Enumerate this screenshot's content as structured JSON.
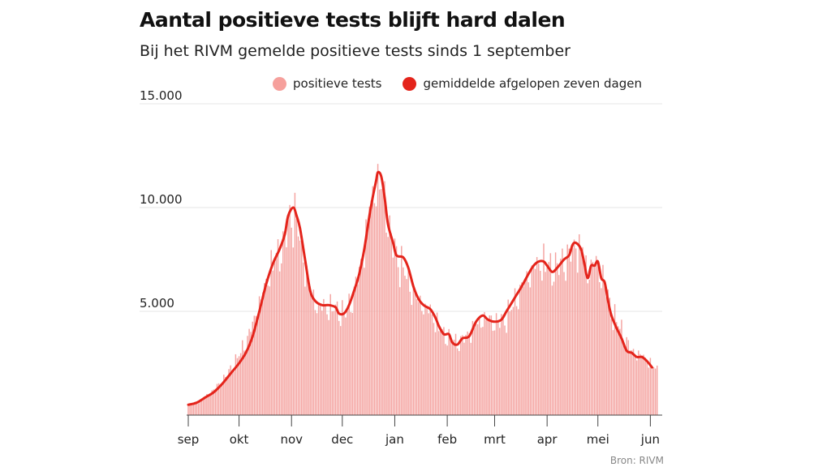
{
  "title": "Aantal positieve tests blijft hard dalen",
  "subtitle": "Bij het RIVM gemelde positieve tests sinds 1 september",
  "source": "Bron: RIVM",
  "colors": {
    "bars": "#f4a3a0",
    "line": "#e4241b",
    "legend_bars": "#f6a09c",
    "legend_line": "#e4241b",
    "grid": "#e6e6e6"
  },
  "chart_data": {
    "type": "bar",
    "ylim": [
      0,
      15000
    ],
    "yticks": [
      5000,
      10000,
      15000
    ],
    "ytick_labels": [
      "5.000",
      "10.000",
      "15.000"
    ],
    "xticks": [
      {
        "label": "sep",
        "day": 0
      },
      {
        "label": "okt",
        "day": 30
      },
      {
        "label": "nov",
        "day": 61
      },
      {
        "label": "dec",
        "day": 91
      },
      {
        "label": "jan",
        "day": 122
      },
      {
        "label": "feb",
        "day": 153
      },
      {
        "label": "mrt",
        "day": 181
      },
      {
        "label": "apr",
        "day": 212
      },
      {
        "label": "mei",
        "day": 242
      },
      {
        "label": "jun",
        "day": 273
      }
    ],
    "series": [
      {
        "name": "positieve tests",
        "type": "bar",
        "x_start": "2020-09-01",
        "x_end": "2021-06-07",
        "anchors": [
          [
            0,
            500
          ],
          [
            7,
            700
          ],
          [
            14,
            1150
          ],
          [
            21,
            1750
          ],
          [
            28,
            2600
          ],
          [
            35,
            3700
          ],
          [
            42,
            5400
          ],
          [
            49,
            7200
          ],
          [
            56,
            8200
          ],
          [
            60,
            9500
          ],
          [
            63,
            9700
          ],
          [
            67,
            8100
          ],
          [
            71,
            6300
          ],
          [
            76,
            5300
          ],
          [
            81,
            5200
          ],
          [
            86,
            5200
          ],
          [
            89,
            5000
          ],
          [
            93,
            4900
          ],
          [
            97,
            5600
          ],
          [
            103,
            7700
          ],
          [
            107,
            9900
          ],
          [
            110,
            11000
          ],
          [
            113,
            11300
          ],
          [
            116,
            10500
          ],
          [
            119,
            8900
          ],
          [
            123,
            7700
          ],
          [
            127,
            7100
          ],
          [
            131,
            6300
          ],
          [
            135,
            5600
          ],
          [
            139,
            5300
          ],
          [
            143,
            5000
          ],
          [
            147,
            4400
          ],
          [
            151,
            3900
          ],
          [
            155,
            3700
          ],
          [
            159,
            3500
          ],
          [
            163,
            3700
          ],
          [
            169,
            4300
          ],
          [
            175,
            4700
          ],
          [
            181,
            4500
          ],
          [
            187,
            4600
          ],
          [
            193,
            5500
          ],
          [
            199,
            6500
          ],
          [
            205,
            7200
          ],
          [
            210,
            7400
          ],
          [
            215,
            7100
          ],
          [
            220,
            7300
          ],
          [
            225,
            7700
          ],
          [
            229,
            8200
          ],
          [
            233,
            7900
          ],
          [
            236,
            6900
          ],
          [
            239,
            7400
          ],
          [
            242,
            7200
          ],
          [
            246,
            6400
          ],
          [
            250,
            5000
          ],
          [
            256,
            4100
          ],
          [
            262,
            3100
          ],
          [
            268,
            2900
          ],
          [
            273,
            2500
          ],
          [
            276,
            2200
          ]
        ],
        "values_note": ""
      },
      {
        "name": "gemiddelde afgelopen zeven dagen",
        "type": "line",
        "points": [
          [
            0,
            500
          ],
          [
            5,
            600
          ],
          [
            10,
            850
          ],
          [
            15,
            1100
          ],
          [
            20,
            1500
          ],
          [
            25,
            2000
          ],
          [
            30,
            2500
          ],
          [
            34,
            3000
          ],
          [
            38,
            3800
          ],
          [
            42,
            5000
          ],
          [
            46,
            6300
          ],
          [
            50,
            7300
          ],
          [
            54,
            8000
          ],
          [
            57,
            8700
          ],
          [
            59,
            9600
          ],
          [
            62,
            10000
          ],
          [
            64,
            9600
          ],
          [
            66,
            9000
          ],
          [
            69,
            7500
          ],
          [
            72,
            6000
          ],
          [
            75,
            5500
          ],
          [
            79,
            5300
          ],
          [
            83,
            5300
          ],
          [
            87,
            5200
          ],
          [
            89,
            4900
          ],
          [
            92,
            4900
          ],
          [
            95,
            5300
          ],
          [
            98,
            6000
          ],
          [
            101,
            6800
          ],
          [
            104,
            8000
          ],
          [
            107,
            9600
          ],
          [
            109,
            10500
          ],
          [
            111,
            11300
          ],
          [
            112,
            11700
          ],
          [
            114,
            11500
          ],
          [
            116,
            10500
          ],
          [
            118,
            9200
          ],
          [
            121,
            8300
          ],
          [
            123,
            7700
          ],
          [
            127,
            7600
          ],
          [
            130,
            7100
          ],
          [
            133,
            6200
          ],
          [
            136,
            5600
          ],
          [
            139,
            5300
          ],
          [
            143,
            5100
          ],
          [
            146,
            4700
          ],
          [
            148,
            4300
          ],
          [
            151,
            3900
          ],
          [
            154,
            3900
          ],
          [
            156,
            3500
          ],
          [
            159,
            3400
          ],
          [
            162,
            3700
          ],
          [
            166,
            3800
          ],
          [
            170,
            4500
          ],
          [
            174,
            4800
          ],
          [
            177,
            4600
          ],
          [
            181,
            4500
          ],
          [
            185,
            4600
          ],
          [
            188,
            5000
          ],
          [
            191,
            5400
          ],
          [
            194,
            5800
          ],
          [
            197,
            6200
          ],
          [
            201,
            6800
          ],
          [
            204,
            7200
          ],
          [
            207,
            7400
          ],
          [
            210,
            7400
          ],
          [
            212,
            7200
          ],
          [
            215,
            6900
          ],
          [
            218,
            7100
          ],
          [
            222,
            7500
          ],
          [
            225,
            7700
          ],
          [
            227,
            8200
          ],
          [
            229,
            8300
          ],
          [
            232,
            8000
          ],
          [
            234,
            7300
          ],
          [
            236,
            6600
          ],
          [
            238,
            7200
          ],
          [
            240,
            7200
          ],
          [
            242,
            7400
          ],
          [
            244,
            6600
          ],
          [
            246,
            6400
          ],
          [
            248,
            5500
          ],
          [
            250,
            4800
          ],
          [
            253,
            4200
          ],
          [
            256,
            3700
          ],
          [
            259,
            3100
          ],
          [
            262,
            3000
          ],
          [
            265,
            2800
          ],
          [
            268,
            2800
          ],
          [
            271,
            2600
          ],
          [
            274,
            2300
          ]
        ]
      }
    ]
  }
}
